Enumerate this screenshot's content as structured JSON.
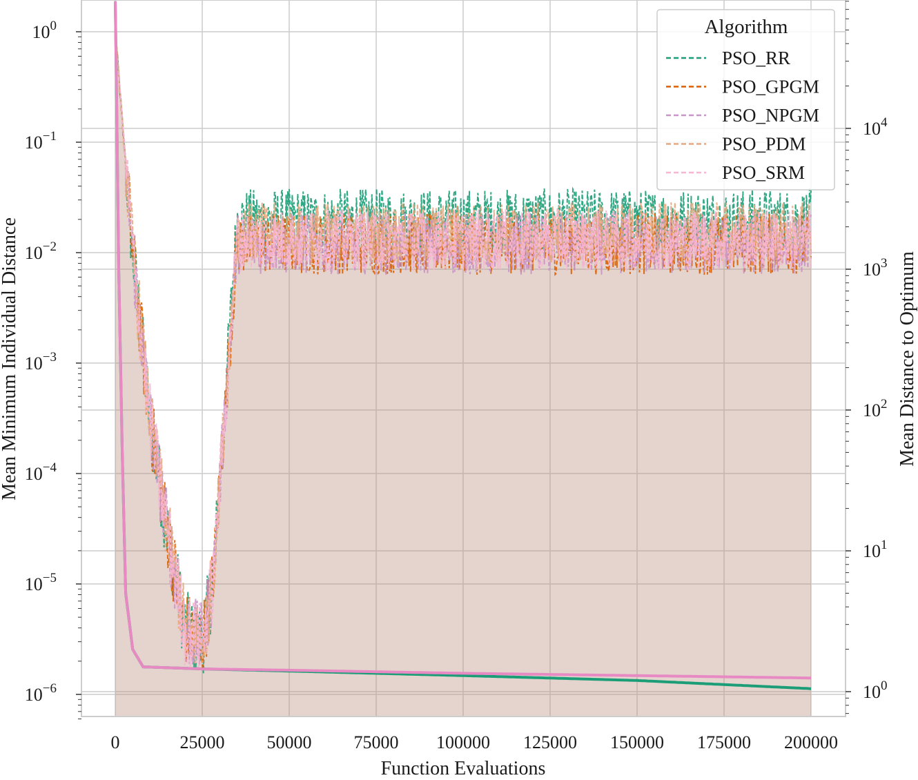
{
  "chart_data": {
    "type": "line",
    "xlabel": "Function Evaluations",
    "ylabel_left": "Mean Minimum Individual Distance",
    "ylabel_right": "Mean Distance to Optimum",
    "x_ticks": [
      0,
      25000,
      50000,
      75000,
      100000,
      125000,
      150000,
      175000,
      200000
    ],
    "x_tick_labels": [
      "0",
      "25000",
      "50000",
      "75000",
      "100000",
      "125000",
      "150000",
      "175000",
      "200000"
    ],
    "xlim": [
      -10000,
      210000
    ],
    "left_axis": {
      "scale": "log",
      "ylim": [
        6e-07,
        2
      ],
      "tick_exponents": [
        0,
        -1,
        -2,
        -3,
        -4,
        -5,
        -6
      ]
    },
    "right_axis": {
      "scale": "log",
      "ylim": [
        0.65,
        90000
      ],
      "tick_exponents": [
        4,
        3,
        2,
        1,
        0
      ]
    },
    "grid": true,
    "legend": {
      "title": "Algorithm",
      "position": "top-right",
      "entries": [
        "PSO_RR",
        "PSO_GPGM",
        "PSO_NPGM",
        "PSO_PDM",
        "PSO_SRM"
      ]
    },
    "series": [
      {
        "name": "PSO_RR",
        "color": "#1b9e77",
        "style": "dashed",
        "axis": "left",
        "x": [
          0,
          5000,
          10000,
          15000,
          20000,
          25000,
          28000,
          35000,
          50000,
          100000,
          150000,
          200000
        ],
        "y": [
          1.0,
          0.01,
          0.0003,
          3e-05,
          4e-06,
          3e-06,
          1e-05,
          0.02,
          0.02,
          0.02,
          0.02,
          0.02
        ]
      },
      {
        "name": "PSO_GPGM",
        "color": "#d95f02",
        "style": "dashed",
        "axis": "left",
        "x": [
          0,
          5000,
          10000,
          15000,
          20000,
          25000,
          28000,
          35000,
          50000,
          100000,
          150000,
          200000
        ],
        "y": [
          1.0,
          0.01,
          0.0003,
          3e-05,
          4e-06,
          3e-06,
          1e-05,
          0.012,
          0.012,
          0.012,
          0.012,
          0.012
        ]
      },
      {
        "name": "PSO_NPGM",
        "color": "#c994c7",
        "style": "dashed",
        "axis": "left",
        "x": [
          0,
          5000,
          10000,
          15000,
          20000,
          25000,
          28000,
          35000,
          50000,
          100000,
          150000,
          200000
        ],
        "y": [
          1.0,
          0.01,
          0.0003,
          3e-05,
          4e-06,
          3e-06,
          1e-05,
          0.012,
          0.012,
          0.012,
          0.012,
          0.012
        ]
      },
      {
        "name": "PSO_PDM",
        "color": "#e5a97f",
        "style": "dashed",
        "axis": "left",
        "x": [
          0,
          5000,
          10000,
          15000,
          20000,
          25000,
          28000,
          35000,
          50000,
          100000,
          150000,
          200000
        ],
        "y": [
          1.0,
          0.01,
          0.0003,
          3e-05,
          4e-06,
          3e-06,
          1e-05,
          0.015,
          0.015,
          0.015,
          0.015,
          0.015
        ]
      },
      {
        "name": "PSO_SRM",
        "color": "#f7b6d2",
        "style": "dashed",
        "axis": "left",
        "x": [
          0,
          5000,
          10000,
          15000,
          20000,
          25000,
          28000,
          35000,
          50000,
          100000,
          150000,
          200000
        ],
        "y": [
          1.0,
          0.01,
          0.0003,
          3e-05,
          4e-06,
          3e-06,
          1e-05,
          0.013,
          0.013,
          0.013,
          0.013,
          0.013
        ]
      },
      {
        "name": "PSO_RR",
        "color": "#1b9e77",
        "style": "solid",
        "axis": "right",
        "x": [
          0,
          500,
          1000,
          2000,
          3000,
          5000,
          8000,
          25000,
          50000,
          100000,
          150000,
          200000
        ],
        "y": [
          80000,
          10000,
          1000,
          50,
          5,
          2,
          1.5,
          1.45,
          1.4,
          1.3,
          1.2,
          1.05
        ]
      },
      {
        "name": "PSO_SRM",
        "color": "#e78ac3",
        "style": "solid",
        "axis": "right",
        "x": [
          0,
          500,
          1000,
          2000,
          3000,
          5000,
          8000,
          25000,
          50000,
          100000,
          150000,
          200000
        ],
        "y": [
          80000,
          10000,
          1000,
          50,
          5,
          2,
          1.5,
          1.45,
          1.42,
          1.35,
          1.3,
          1.25
        ]
      }
    ]
  }
}
